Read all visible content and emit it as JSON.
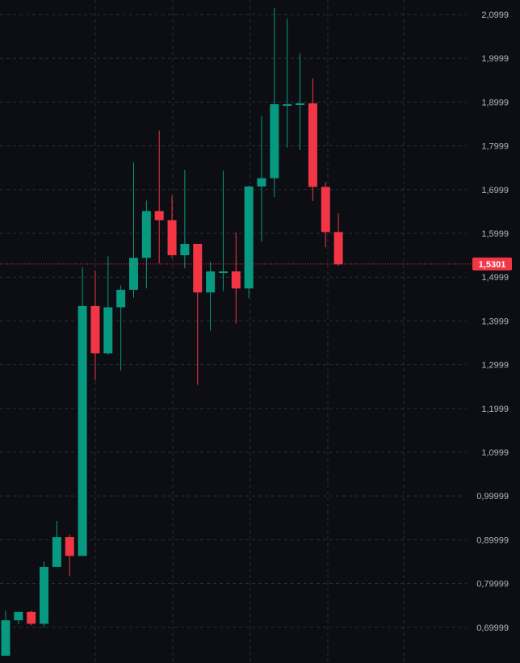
{
  "chart_data": {
    "type": "candlestick",
    "y_ticks": [
      "2,0999",
      "1,9999",
      "1,8999",
      "1,7999",
      "1,6999",
      "1,5999",
      "1,4999",
      "1,3999",
      "1,2999",
      "1,1999",
      "1,0999",
      "0,99999",
      "0,89999",
      "0,79999",
      "0,69999"
    ],
    "y_tick_values": [
      2.0999,
      1.9999,
      1.8999,
      1.7999,
      1.6999,
      1.5999,
      1.4999,
      1.3999,
      1.2999,
      1.1999,
      1.0999,
      0.99999,
      0.89999,
      0.79999,
      0.69999
    ],
    "ylim": [
      0.635,
      2.115
    ],
    "grid": true,
    "current_price": 1.5301,
    "current_price_label": "1,5301",
    "colors": {
      "background": "#0c0e13",
      "up": "#089981",
      "down": "#f23645",
      "grid": "#2a2e39",
      "price_line": "#f23645"
    },
    "candles": [
      {
        "o": 0.635,
        "h": 0.738,
        "l": 0.635,
        "c": 0.716
      },
      {
        "o": 0.716,
        "h": 0.735,
        "l": 0.707,
        "c": 0.735
      },
      {
        "o": 0.735,
        "h": 0.738,
        "l": 0.704,
        "c": 0.708
      },
      {
        "o": 0.708,
        "h": 0.85,
        "l": 0.7,
        "c": 0.838
      },
      {
        "o": 0.838,
        "h": 0.943,
        "l": 0.838,
        "c": 0.906
      },
      {
        "o": 0.906,
        "h": 0.912,
        "l": 0.817,
        "c": 0.863
      },
      {
        "o": 0.863,
        "h": 1.522,
        "l": 0.863,
        "c": 1.434
      },
      {
        "o": 1.434,
        "h": 1.515,
        "l": 1.265,
        "c": 1.326
      },
      {
        "o": 1.326,
        "h": 1.548,
        "l": 1.323,
        "c": 1.431
      },
      {
        "o": 1.431,
        "h": 1.481,
        "l": 1.287,
        "c": 1.471
      },
      {
        "o": 1.471,
        "h": 1.762,
        "l": 1.453,
        "c": 1.544
      },
      {
        "o": 1.544,
        "h": 1.675,
        "l": 1.474,
        "c": 1.651
      },
      {
        "o": 1.651,
        "h": 1.835,
        "l": 1.531,
        "c": 1.63
      },
      {
        "o": 1.63,
        "h": 1.686,
        "l": 1.544,
        "c": 1.55
      },
      {
        "o": 1.55,
        "h": 1.745,
        "l": 1.52,
        "c": 1.576
      },
      {
        "o": 1.576,
        "h": 1.576,
        "l": 1.254,
        "c": 1.465
      },
      {
        "o": 1.465,
        "h": 1.535,
        "l": 1.378,
        "c": 1.513
      },
      {
        "o": 1.513,
        "h": 1.743,
        "l": 1.468,
        "c": 1.513
      },
      {
        "o": 1.513,
        "h": 1.602,
        "l": 1.394,
        "c": 1.474
      },
      {
        "o": 1.474,
        "h": 1.709,
        "l": 1.452,
        "c": 1.707
      },
      {
        "o": 1.707,
        "h": 1.869,
        "l": 1.581,
        "c": 1.726
      },
      {
        "o": 1.726,
        "h": 2.115,
        "l": 1.683,
        "c": 1.895
      },
      {
        "o": 1.895,
        "h": 2.09,
        "l": 1.796,
        "c": 1.895
      },
      {
        "o": 1.895,
        "h": 2.012,
        "l": 1.79,
        "c": 1.897
      },
      {
        "o": 1.897,
        "h": 1.954,
        "l": 1.674,
        "c": 1.706
      },
      {
        "o": 1.706,
        "h": 1.717,
        "l": 1.568,
        "c": 1.603
      },
      {
        "o": 1.603,
        "h": 1.646,
        "l": 1.526,
        "c": 1.529
      }
    ]
  }
}
